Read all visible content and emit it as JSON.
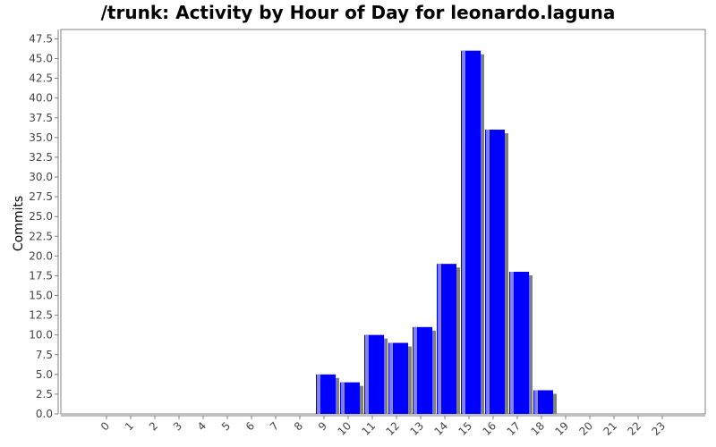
{
  "chart_data": {
    "type": "bar",
    "title": "/trunk: Activity by Hour of Day for leonardo.laguna",
    "xlabel": "",
    "ylabel": "Commits",
    "categories": [
      "0",
      "1",
      "2",
      "3",
      "4",
      "5",
      "6",
      "7",
      "8",
      "9",
      "10",
      "11",
      "12",
      "13",
      "14",
      "15",
      "16",
      "17",
      "18",
      "19",
      "20",
      "21",
      "22",
      "23"
    ],
    "values": [
      0,
      0,
      0,
      0,
      0,
      0,
      0,
      0,
      0,
      5,
      4,
      10,
      9,
      11,
      19,
      46,
      36,
      18,
      3,
      0,
      0,
      0,
      0,
      0
    ],
    "ylim": [
      0,
      48
    ],
    "y_ticks": [
      "0.0",
      "2.5",
      "5.0",
      "7.5",
      "10.0",
      "12.5",
      "15.0",
      "17.5",
      "20.0",
      "22.5",
      "25.0",
      "27.5",
      "30.0",
      "32.5",
      "35.0",
      "37.5",
      "40.0",
      "42.5",
      "45.0",
      "47.5"
    ],
    "grid": false,
    "colors": {
      "bar": "#0000ff",
      "bar_highlight": "#8080ff",
      "shadow": "#808080",
      "plot_border": "#808080",
      "axis": "#808080"
    }
  }
}
